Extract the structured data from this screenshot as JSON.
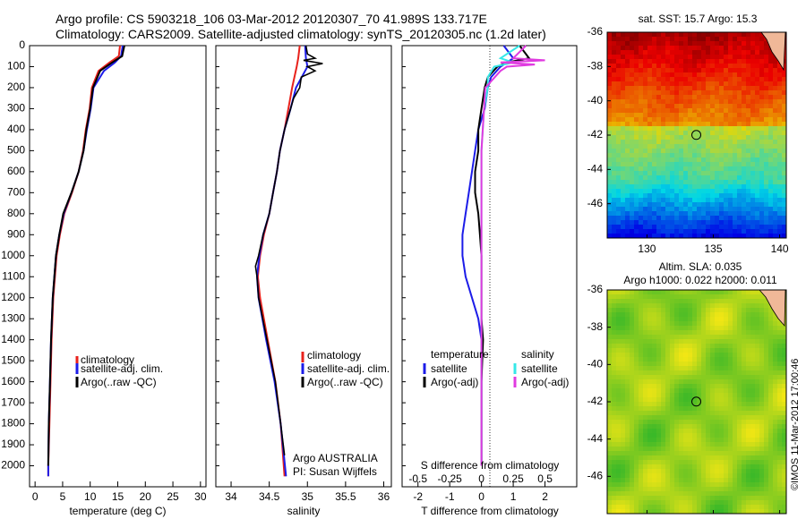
{
  "title": {
    "line1": "Argo profile: CS 5903218_106 03-Mar-2012 20120307_70 41.989S 133.717E",
    "line2": "Climatology: CARS2009. Satellite-adjusted climatology: synTS_20120305.nc (1.2d later)"
  },
  "colors": {
    "climatology": "#e8221c",
    "satellite": "#1c1ce8",
    "argo": "#000000",
    "satellite_s": "#36e8e8",
    "argo_s": "#e03ae0"
  },
  "chart_data": [
    {
      "type": "line",
      "panel": "temperature",
      "xlabel": "temperature (deg C)",
      "ylabel": "",
      "xlim": [
        -1,
        31
      ],
      "ylim": [
        2100,
        0
      ],
      "xticks": [
        "0",
        "5",
        "10",
        "15",
        "20",
        "25",
        "30"
      ],
      "yticks": [
        "0",
        "100",
        "200",
        "300",
        "400",
        "500",
        "600",
        "700",
        "800",
        "900",
        "1000",
        "1100",
        "1200",
        "1300",
        "1400",
        "1500",
        "1600",
        "1700",
        "1800",
        "1900",
        "2000"
      ],
      "legend": [
        "climatology",
        "satellite-adj. clim.",
        "Argo(..raw -QC)"
      ],
      "series": [
        {
          "name": "climatology",
          "depth": [
            0,
            50,
            80,
            120,
            200,
            300,
            400,
            500,
            600,
            700,
            800,
            900,
            1000,
            1200,
            1400,
            1600,
            1800,
            2000,
            2050
          ],
          "values": [
            15.4,
            15.2,
            13.5,
            11.5,
            10.3,
            9.9,
            9.2,
            8.7,
            7.9,
            6.7,
            5.3,
            4.5,
            3.9,
            3.3,
            3.0,
            2.8,
            2.6,
            2.4,
            2.4
          ]
        },
        {
          "name": "satellite-adj. clim.",
          "depth": [
            0,
            50,
            80,
            120,
            200,
            300,
            400,
            500,
            600,
            700,
            800,
            900,
            1000,
            1200,
            1400,
            1600,
            1800,
            2000,
            2050
          ],
          "values": [
            15.9,
            15.6,
            14.5,
            12.5,
            10.6,
            10.1,
            9.4,
            8.8,
            7.9,
            6.6,
            5.2,
            4.4,
            3.8,
            3.2,
            2.9,
            2.7,
            2.5,
            2.4,
            2.4
          ]
        },
        {
          "name": "Argo(..raw -QC)",
          "depth": [
            0,
            50,
            80,
            120,
            200,
            300,
            400,
            500,
            600,
            700,
            800,
            900,
            1000,
            1200,
            1400,
            1600,
            1800,
            2000
          ],
          "values": [
            16.2,
            15.8,
            14.0,
            11.8,
            10.5,
            10.0,
            9.3,
            8.8,
            7.9,
            6.6,
            5.1,
            4.4,
            3.8,
            3.2,
            2.9,
            2.7,
            2.5,
            2.4
          ]
        }
      ]
    },
    {
      "type": "line",
      "panel": "salinity",
      "xlabel": "salinity",
      "xlim": [
        33.8,
        36.1
      ],
      "ylim": [
        2100,
        0
      ],
      "xticks": [
        "34",
        "34.5",
        "35",
        "35.5",
        "36"
      ],
      "legend": [
        "climatology",
        "satellite-adj. clim.",
        "Argo(..raw -QC)"
      ],
      "annotation": [
        "Argo AUSTRALIA",
        "PI: Susan Wijffels"
      ],
      "series": [
        {
          "name": "climatology",
          "depth": [
            0,
            60,
            100,
            200,
            300,
            400,
            500,
            600,
            700,
            800,
            900,
            1000,
            1100,
            1200,
            1400,
            1600,
            1800,
            2050
          ],
          "values": [
            34.9,
            34.88,
            34.86,
            34.8,
            34.75,
            34.7,
            34.64,
            34.6,
            34.55,
            34.5,
            34.43,
            34.38,
            34.35,
            34.38,
            34.48,
            34.58,
            34.65,
            34.7
          ]
        },
        {
          "name": "satellite-adj. clim.",
          "depth": [
            0,
            60,
            100,
            200,
            300,
            400,
            500,
            600,
            700,
            800,
            900,
            1000,
            1100,
            1200,
            1400,
            1600,
            1800,
            2050
          ],
          "values": [
            34.97,
            34.98,
            35.0,
            34.85,
            34.78,
            34.7,
            34.64,
            34.6,
            34.55,
            34.5,
            34.42,
            34.37,
            34.34,
            34.36,
            34.46,
            34.57,
            34.65,
            34.72
          ]
        },
        {
          "name": "Argo(..raw -QC)",
          "depth": [
            0,
            40,
            60,
            70,
            85,
            100,
            120,
            150,
            200,
            250,
            300,
            400,
            500,
            600,
            700,
            800,
            900,
            1000,
            1050,
            1100,
            1200,
            1400,
            1600,
            1800,
            1950
          ],
          "values": [
            34.98,
            35.0,
            35.1,
            34.95,
            35.2,
            35.0,
            35.1,
            34.92,
            34.9,
            34.82,
            34.78,
            34.7,
            34.64,
            34.6,
            34.55,
            34.5,
            34.42,
            34.36,
            34.32,
            34.34,
            34.36,
            34.47,
            34.58,
            34.65,
            34.7
          ]
        }
      ]
    },
    {
      "type": "line",
      "panel": "difference",
      "xlabel": "T difference from climatology",
      "xlabel_top": "S difference from climatology",
      "xlim": [
        -2.5,
        3.0
      ],
      "ylim": [
        2100,
        0
      ],
      "xticks": [
        "-2",
        "-1",
        "0",
        "1",
        "2"
      ],
      "xticks_s": [
        "-0.5",
        "-0.25",
        "0",
        "0.25",
        "0.5"
      ],
      "legend_t": {
        "header": "temperature",
        "items": [
          "satellite",
          "Argo(-adj)"
        ]
      },
      "legend_s": {
        "header": "salinity",
        "items": [
          "satellite",
          "Argo(-adj)"
        ]
      },
      "series": [
        {
          "name": "T satellite",
          "depth": [
            0,
            60,
            100,
            150,
            200,
            300,
            400,
            500,
            600,
            700,
            800,
            900,
            1000,
            1100,
            1200,
            1300,
            1400,
            1600,
            1800,
            2000
          ],
          "values": [
            0.7,
            1.0,
            0.6,
            0.3,
            0.2,
            0.1,
            -0.1,
            -0.2,
            -0.3,
            -0.4,
            -0.5,
            -0.6,
            -0.6,
            -0.5,
            -0.3,
            -0.1,
            0,
            0,
            0,
            0
          ]
        },
        {
          "name": "T Argo(-adj)",
          "depth": [
            0,
            60,
            80,
            100,
            150,
            200,
            300,
            400,
            500,
            600,
            700,
            800,
            900,
            1000,
            1100,
            1200,
            1300,
            1400,
            1600,
            1800,
            2000
          ],
          "values": [
            1.2,
            1.5,
            0.8,
            0.5,
            0.2,
            0.1,
            0.0,
            -0.1,
            -0.1,
            -0.2,
            -0.2,
            -0.1,
            -0.05,
            0,
            0,
            0,
            0,
            0.05,
            0,
            0,
            0
          ]
        },
        {
          "name": "S satellite",
          "depth": [
            0,
            60,
            80,
            100,
            150,
            200,
            300,
            500,
            700,
            900,
            1100,
            1400,
            1800,
            2000
          ],
          "values": [
            0.3,
            0.15,
            0.25,
            0.1,
            0.05,
            0.05,
            0.02,
            0.0,
            0.0,
            0.0,
            0.0,
            0.0,
            0.0,
            0.0
          ]
        },
        {
          "name": "S Argo(-adj)",
          "depth": [
            0,
            60,
            70,
            80,
            90,
            100,
            120,
            200,
            300,
            500,
            700,
            900,
            1100,
            1400,
            1800,
            2000
          ],
          "values": [
            0.35,
            0.25,
            0.5,
            0.15,
            0.42,
            0.2,
            0.15,
            0.03,
            0.02,
            0.0,
            0.0,
            0.0,
            0.0,
            0.0,
            0.0,
            0.0
          ]
        }
      ]
    },
    {
      "type": "heatmap",
      "panel": "sst",
      "title": "sat. SST: 15.7 Argo: 15.3",
      "xlim": [
        127,
        140.5
      ],
      "ylim": [
        -48,
        -36
      ],
      "xticks": [
        "130",
        "135",
        "140"
      ],
      "yticks": [
        "-36",
        "-38",
        "-40",
        "-42",
        "-44",
        "-46"
      ],
      "marker": {
        "lon": 133.717,
        "lat": -41.989
      }
    },
    {
      "type": "heatmap",
      "panel": "sla",
      "title": "Altim. SLA: 0.035",
      "subtitle": "Argo h1000: 0.022 h2000: 0.011",
      "xlim": [
        127,
        140.5
      ],
      "ylim": [
        -48,
        -36
      ],
      "xticks": [
        "130",
        "135",
        "140"
      ],
      "yticks": [
        "-36",
        "-38",
        "-40",
        "-42",
        "-44",
        "-46"
      ],
      "marker": {
        "lon": 133.717,
        "lat": -41.989
      }
    }
  ],
  "watermark": "©IMOS 11-Mar-2012 17:00:46"
}
